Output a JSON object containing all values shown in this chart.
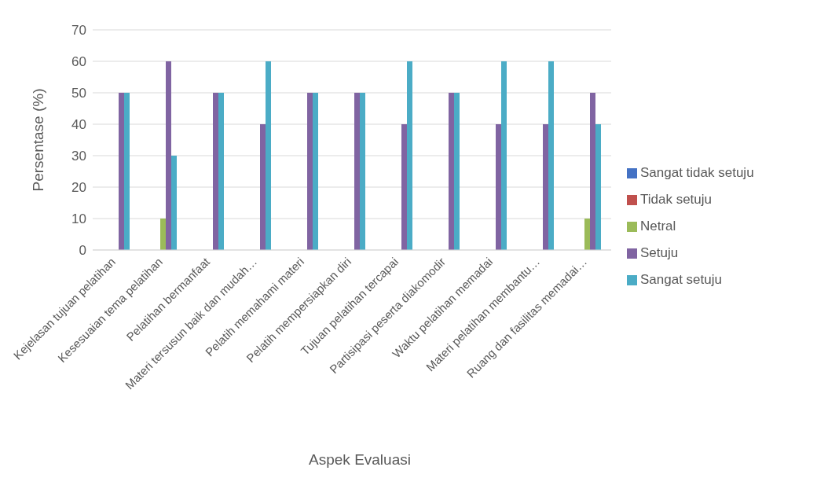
{
  "chart_data": {
    "type": "bar",
    "xlabel": "Aspek Evaluasi",
    "ylabel": "Persentase (%)",
    "categories": [
      "Kejelasan tujuan pelatihan",
      "Kesesuaian tema pelatihan",
      "Pelatihan bermanfaat",
      "Materi tersusun baik dan mudah…",
      "Pelatih memahami materi",
      "Pelatih mempersiapkan diri",
      "Tujuan pelatihan tercapai",
      "Partisipasi peserta diakomodir",
      "Waktu pelatihan memadai",
      "Materi pelatihan membantu…",
      "Ruang dan fasilitas memadai…"
    ],
    "series": [
      {
        "name": "Sangat tidak setuju",
        "color": "#4472c4",
        "values": [
          0,
          0,
          0,
          0,
          0,
          0,
          0,
          0,
          0,
          0,
          0
        ]
      },
      {
        "name": "Tidak setuju",
        "color": "#c0504d",
        "values": [
          0,
          0,
          0,
          0,
          0,
          0,
          0,
          0,
          0,
          0,
          0
        ]
      },
      {
        "name": "Netral",
        "color": "#9bbb59",
        "values": [
          0,
          10,
          0,
          0,
          0,
          0,
          0,
          0,
          0,
          0,
          10
        ]
      },
      {
        "name": "Setuju",
        "color": "#8064a2",
        "values": [
          50,
          60,
          50,
          40,
          50,
          50,
          40,
          50,
          40,
          40,
          50
        ]
      },
      {
        "name": "Sangat setuju",
        "color": "#4bacc6",
        "values": [
          50,
          30,
          50,
          60,
          50,
          50,
          60,
          50,
          60,
          60,
          40
        ]
      }
    ],
    "ylim": [
      0,
      70
    ],
    "yticks": [
      0,
      10,
      20,
      30,
      40,
      50,
      60,
      70
    ],
    "grid": "y",
    "legend": "right"
  }
}
